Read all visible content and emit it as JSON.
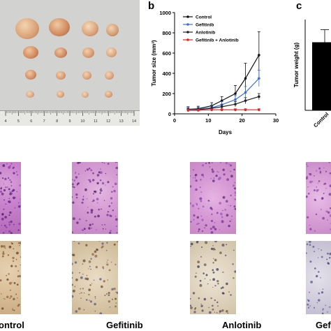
{
  "panels": {
    "a_letter": "",
    "b_letter": "b",
    "c_letter": "c"
  },
  "ruler": {
    "numbers": [
      "4",
      "5",
      "6",
      "7",
      "8",
      "9",
      "10",
      "11",
      "12",
      "13",
      "14"
    ]
  },
  "chart_data": [
    {
      "type": "line",
      "xlabel": "Days",
      "ylabel": "Tumor size (mm³)",
      "xlim": [
        0,
        30
      ],
      "ylim": [
        0,
        1000
      ],
      "xticks": [
        0,
        10,
        20,
        30
      ],
      "yticks": [
        0,
        200,
        400,
        600,
        800,
        1000
      ],
      "x": [
        4,
        7,
        11,
        14,
        18,
        21,
        25
      ],
      "legend_position": "top-left",
      "series": [
        {
          "name": "Control",
          "color": "#111111",
          "values": [
            45,
            50,
            80,
            130,
            200,
            350,
            580
          ],
          "errors": [
            25,
            25,
            30,
            40,
            80,
            150,
            230
          ]
        },
        {
          "name": "Gefitinib",
          "color": "#3b6fd8",
          "values": [
            45,
            45,
            60,
            90,
            140,
            210,
            350
          ],
          "errors": [
            20,
            20,
            25,
            30,
            40,
            60,
            80
          ]
        },
        {
          "name": "Anlotinib",
          "color": "#222222",
          "values": [
            40,
            40,
            55,
            70,
            95,
            130,
            170
          ],
          "errors": [
            15,
            15,
            20,
            20,
            25,
            30,
            30
          ]
        },
        {
          "name": "Gefitinib + Anlotinib",
          "color": "#e32222",
          "values": [
            35,
            35,
            40,
            40,
            40,
            40,
            40
          ],
          "errors": [
            10,
            10,
            10,
            10,
            10,
            10,
            10
          ]
        }
      ]
    },
    {
      "type": "bar",
      "ylabel": "Tumor weight (g)",
      "categories": [
        "Control"
      ],
      "values": [
        0.75
      ]
    }
  ],
  "bottom_labels": {
    "control": "ontrol",
    "gefitinib": "Gefitinib",
    "anlotinib": "Anlotinib",
    "gef_partial": "Gef"
  }
}
